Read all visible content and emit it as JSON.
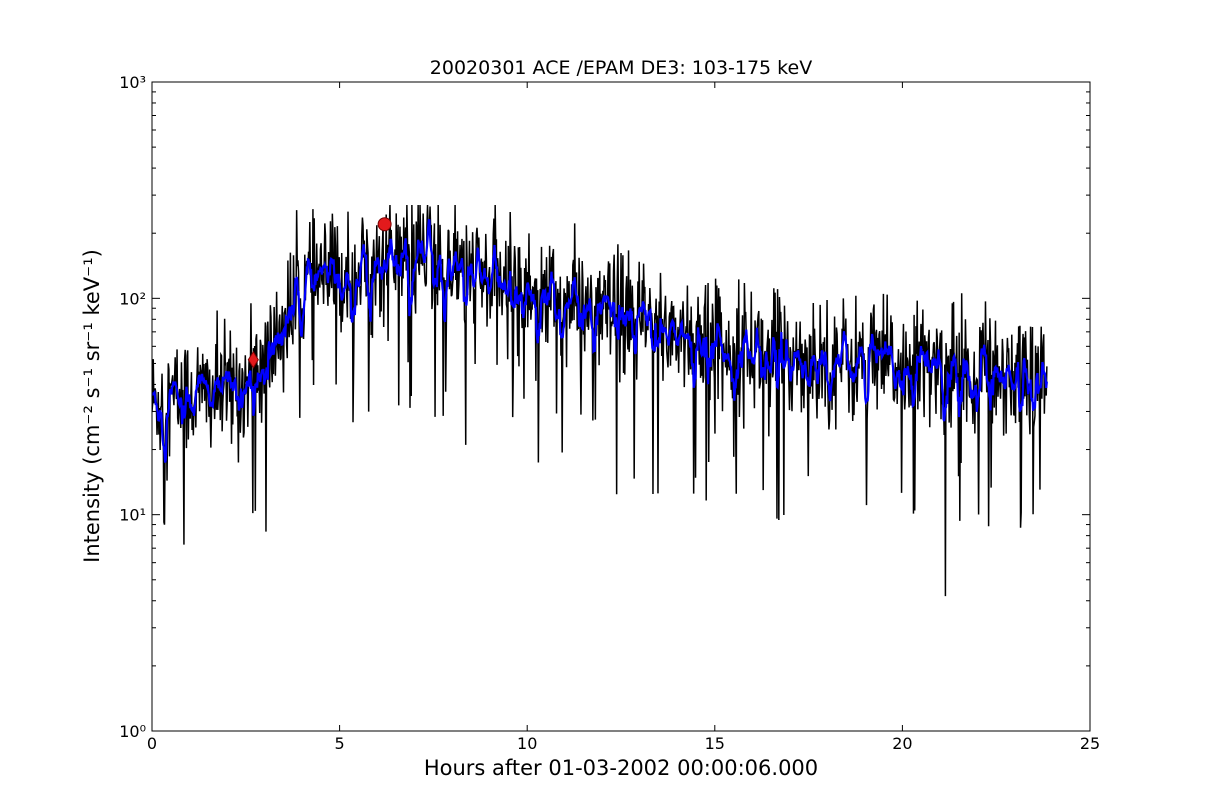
{
  "chart_data": {
    "type": "line",
    "title": "20020301 ACE /EPAM DE3: 103-175 keV",
    "xlabel": "Hours after 01-03-2002 00:00:06.000",
    "ylabel": "Intensity (cm⁻² s⁻¹ sr⁻¹ keV⁻¹)",
    "xlim": [
      0,
      25
    ],
    "ylim": [
      1,
      1000
    ],
    "yscale": "log",
    "grid": false,
    "x_ticks": [
      0,
      5,
      10,
      15,
      20,
      25
    ],
    "x_tick_labels": [
      "0",
      "5",
      "10",
      "15",
      "20",
      "25"
    ],
    "y_ticks": [
      1,
      10,
      100,
      1000
    ],
    "y_tick_labels": [
      "10⁰",
      "10¹",
      "10²",
      "10³"
    ],
    "series": [
      {
        "color": "#000000",
        "x_range": [
          0,
          23.85
        ],
        "envelope_hours": [
          0,
          1,
          2,
          2.8,
          3.5,
          4.2,
          5,
          6,
          6.5,
          7.5,
          9,
          10,
          11,
          12,
          13.5,
          15,
          18,
          21,
          23.85
        ],
        "envelope_values": [
          33,
          36,
          37,
          42,
          75,
          120,
          125,
          140,
          160,
          150,
          120,
          110,
          95,
          85,
          75,
          62,
          52,
          47,
          45
        ],
        "min_value": 4.2,
        "max_value": 270
      },
      {
        "color": "#0000ff",
        "x_range": [
          0,
          23.85
        ],
        "envelope_hours": [
          0,
          1,
          2,
          2.8,
          3.5,
          4.2,
          5,
          6,
          6.5,
          7.5,
          9,
          10,
          11,
          12,
          13.5,
          15,
          18,
          21,
          23.85
        ],
        "envelope_values": [
          33,
          36,
          37,
          42,
          75,
          120,
          125,
          140,
          160,
          150,
          120,
          110,
          95,
          85,
          75,
          62,
          52,
          47,
          45
        ],
        "smoothed": true
      }
    ],
    "markers": [
      {
        "shape": "circle",
        "color": "#e31a1c",
        "x": 6.2,
        "y": 220
      },
      {
        "shape": "diamond",
        "color": "#e31a1c",
        "x": 2.7,
        "y": 52
      }
    ]
  }
}
